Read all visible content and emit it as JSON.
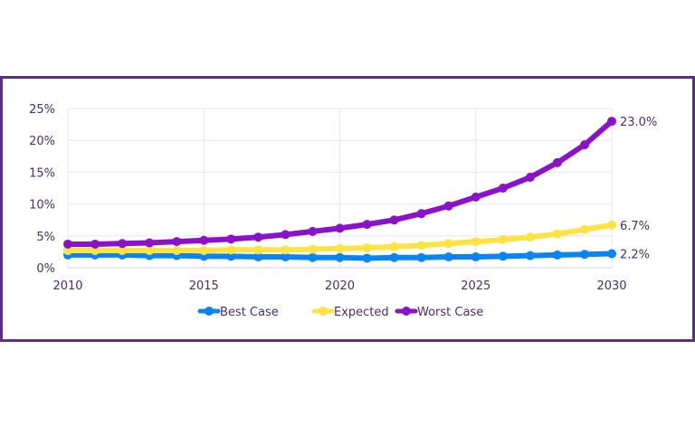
{
  "chart_data": {
    "type": "line",
    "title": "",
    "xlabel": "",
    "ylabel": "",
    "x": [
      2010,
      2011,
      2012,
      2013,
      2014,
      2015,
      2016,
      2017,
      2018,
      2019,
      2020,
      2021,
      2022,
      2023,
      2024,
      2025,
      2026,
      2027,
      2028,
      2029,
      2030
    ],
    "xlim": [
      2010,
      2030
    ],
    "ylim": [
      0,
      25
    ],
    "x_ticks": [
      2010,
      2015,
      2020,
      2025,
      2030
    ],
    "x_tick_labels": [
      "2010",
      "2015",
      "2020",
      "2025",
      "2030"
    ],
    "y_ticks": [
      0,
      5,
      10,
      15,
      20,
      25
    ],
    "y_tick_labels": [
      "0%",
      "5%",
      "10%",
      "15%",
      "20%",
      "25%"
    ],
    "grid": true,
    "legend_position": "bottom",
    "series": [
      {
        "name": "Best Case",
        "color": "#0a84f0",
        "values": [
          2.0,
          2.0,
          2.0,
          1.9,
          1.9,
          1.8,
          1.8,
          1.7,
          1.7,
          1.6,
          1.6,
          1.5,
          1.6,
          1.6,
          1.7,
          1.7,
          1.8,
          1.9,
          2.0,
          2.1,
          2.2
        ],
        "end_label": "2.2%"
      },
      {
        "name": "Expected",
        "color": "#fde343",
        "values": [
          2.7,
          2.7,
          2.7,
          2.7,
          2.7,
          2.7,
          2.8,
          2.8,
          2.8,
          2.9,
          3.0,
          3.1,
          3.3,
          3.5,
          3.8,
          4.1,
          4.4,
          4.8,
          5.3,
          6.0,
          6.7
        ],
        "end_label": "6.7%"
      },
      {
        "name": "Worst Case",
        "color": "#8a12c8",
        "values": [
          3.7,
          3.7,
          3.8,
          3.9,
          4.1,
          4.3,
          4.5,
          4.8,
          5.2,
          5.7,
          6.2,
          6.8,
          7.5,
          8.5,
          9.7,
          11.1,
          12.5,
          14.2,
          16.5,
          19.3,
          23.0
        ],
        "end_label": "23.0%"
      }
    ]
  },
  "colors": {
    "frame_border": "#5b2e7e",
    "grid": "#ebe3f2",
    "text": "#4a2d6b"
  }
}
